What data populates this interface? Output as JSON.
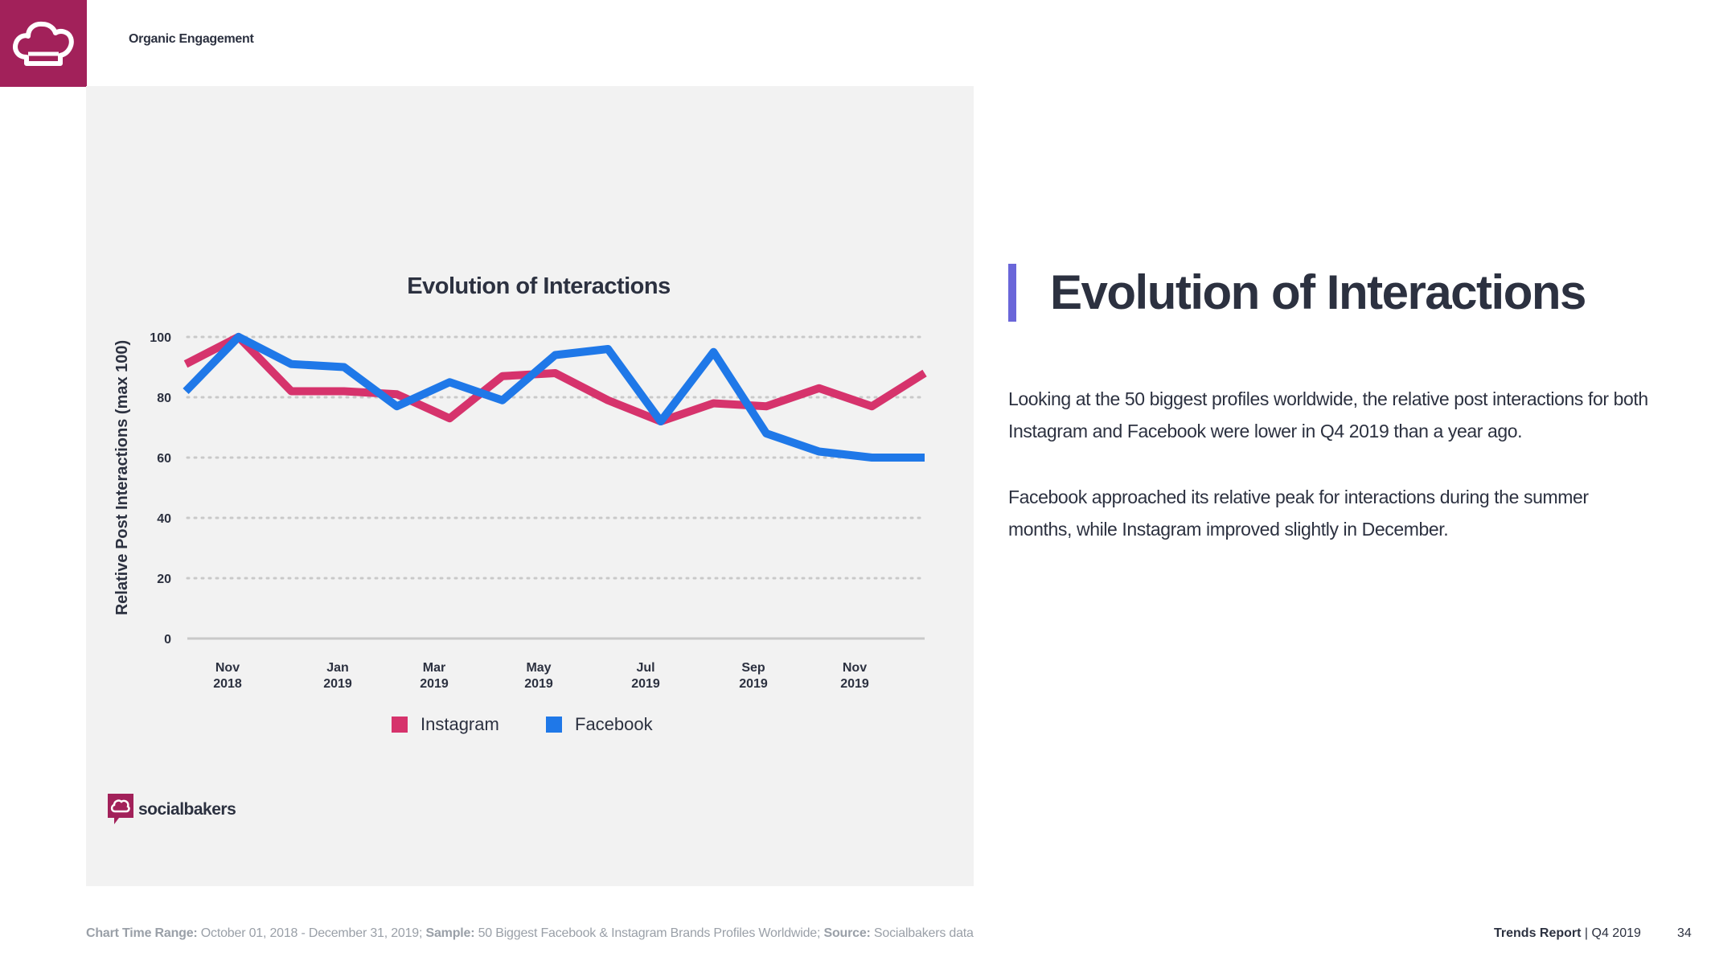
{
  "header": {
    "section_title": "Organic Engagement"
  },
  "brand": {
    "name": "socialbakers",
    "color": "#a2215a"
  },
  "right": {
    "title": "Evolution of Interactions",
    "paragraph1": "Looking at the 50 biggest profiles worldwide, the relative post interactions for both Instagram and Facebook were lower in Q4 2019 than a year ago.",
    "paragraph2": "Facebook approached its relative peak for interactions during the summer months, while Instagram improved slightly in December."
  },
  "footer": {
    "range_label": "Chart Time Range:",
    "range_value": " October  01, 2018 - December 31, 2019; ",
    "sample_label": "Sample:",
    "sample_value": " 50 Biggest Facebook & Instagram Brands Profiles Worldwide; ",
    "source_label": "Source:",
    "source_value": " Socialbakers data",
    "report_label": "Trends Report",
    "report_period": " | Q4 2019",
    "page_number": "34"
  },
  "chart_data": {
    "type": "line",
    "title": "Evolution of Interactions",
    "xlabel": "",
    "ylabel": "Relative Post Interactions (max 100)",
    "ylim": [
      0,
      100
    ],
    "yticks": [
      0,
      20,
      40,
      60,
      80,
      100
    ],
    "grid": true,
    "legend_position": "bottom",
    "x_ticks": [
      {
        "index": 1,
        "month": "Nov",
        "year": "2018"
      },
      {
        "index": 3,
        "month": "Jan",
        "year": "2019"
      },
      {
        "index": 5,
        "month": "Mar",
        "year": "2019"
      },
      {
        "index": 7,
        "month": "May",
        "year": "2019"
      },
      {
        "index": 9,
        "month": "Jul",
        "year": "2019"
      },
      {
        "index": 11,
        "month": "Sep",
        "year": "2019"
      },
      {
        "index": 13,
        "month": "Nov",
        "year": "2019"
      }
    ],
    "series": [
      {
        "name": "Instagram",
        "color": "#d6336c",
        "values": [
          91,
          100,
          82,
          82,
          81,
          73,
          87,
          88,
          79,
          72,
          78,
          77,
          83,
          77,
          88
        ]
      },
      {
        "name": "Facebook",
        "color": "#1f78e8",
        "values": [
          82,
          100,
          91,
          90,
          77,
          85,
          79,
          94,
          96,
          72,
          95,
          68,
          62,
          60,
          60
        ]
      }
    ]
  }
}
